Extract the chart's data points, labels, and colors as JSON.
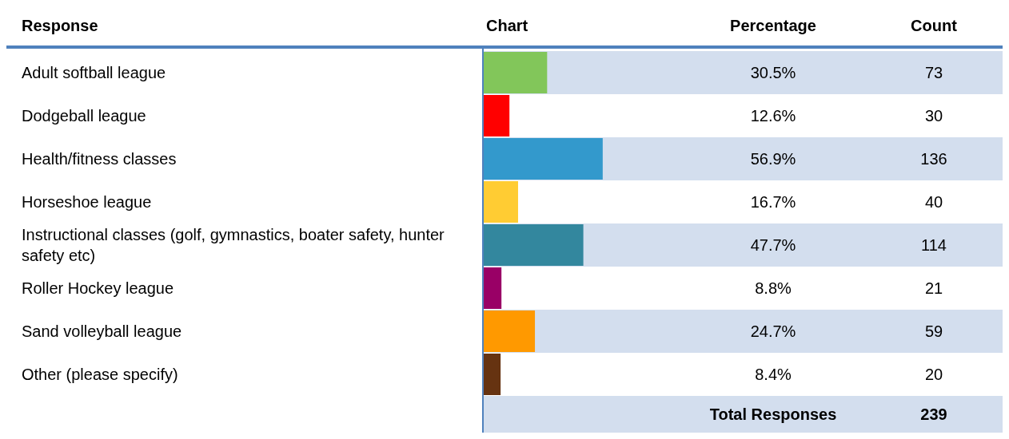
{
  "chart_data": {
    "type": "bar",
    "orientation": "horizontal",
    "ylabel": "Response",
    "xlabel": "Chart",
    "categories": [
      "Adult softball league",
      "Dodgeball league",
      "Health/fitness classes",
      "Horseshoe league",
      "Instructional classes (golf, gymnastics, boater safety, hunter safety etc)",
      "Roller Hockey league",
      "Sand volleyball league",
      "Other (please specify)"
    ],
    "values": [
      30.5,
      12.6,
      56.9,
      16.7,
      47.7,
      8.8,
      24.7,
      8.4
    ],
    "colors": [
      "#82c65a",
      "#ff0000",
      "#3399cc",
      "#ffcc33",
      "#33879e",
      "#990066",
      "#ff9900",
      "#663311"
    ],
    "value_labels": [
      "30.5%",
      "12.6%",
      "56.9%",
      "16.7%",
      "47.7%",
      "8.8%",
      "24.7%",
      "8.4%"
    ],
    "tick_labels": false,
    "legend": false,
    "annotations": [
      "Percentage",
      "Count",
      "73",
      "30",
      "136",
      "40",
      "114",
      "21",
      "59",
      "20",
      "Total Responses",
      "239"
    ]
  }
}
